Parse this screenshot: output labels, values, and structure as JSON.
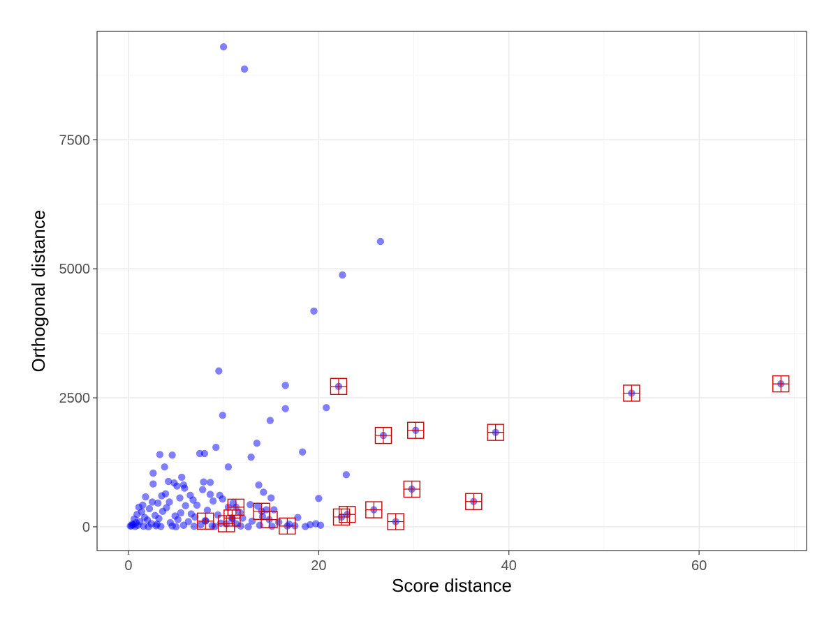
{
  "chart_data": {
    "type": "scatter",
    "title": "",
    "xlabel": "Score distance",
    "ylabel": "Orthogonal distance",
    "xlim": [
      -3.3,
      71.3
    ],
    "ylim": [
      -460,
      9600
    ],
    "x_ticks": [
      0,
      20,
      40,
      60
    ],
    "y_ticks": [
      0,
      2500,
      5000,
      7500
    ],
    "x_tick_labels": [
      "0",
      "20",
      "40",
      "60"
    ],
    "y_tick_labels": [
      "0",
      "2500",
      "5000",
      "7500"
    ],
    "grid": true,
    "legend": "none",
    "point_color": "#0000ff",
    "outlier_marker_color": "#cc0000",
    "series": [
      {
        "values": [
          [
            10.0,
            9300
          ],
          [
            12.2,
            8870
          ],
          [
            26.5,
            5530
          ],
          [
            22.5,
            4880
          ],
          [
            19.5,
            4180
          ],
          [
            9.5,
            3020
          ],
          [
            16.5,
            2740
          ],
          [
            16.5,
            2290
          ],
          [
            20.8,
            2310
          ],
          [
            9.9,
            2160
          ],
          [
            14.9,
            2060
          ],
          [
            13.5,
            1620
          ],
          [
            9.2,
            1540
          ],
          [
            18.3,
            1450
          ],
          [
            7.5,
            1420
          ],
          [
            8.0,
            1420
          ],
          [
            3.3,
            1400
          ],
          [
            4.6,
            1390
          ],
          [
            12.9,
            1350
          ],
          [
            10.5,
            1160
          ],
          [
            3.8,
            1160
          ],
          [
            2.6,
            1040
          ],
          [
            22.9,
            1010
          ],
          [
            5.6,
            960
          ],
          [
            4.2,
            880
          ],
          [
            7.9,
            870
          ],
          [
            8.6,
            860
          ],
          [
            4.8,
            850
          ],
          [
            2.6,
            830
          ],
          [
            5.8,
            810
          ],
          [
            13.7,
            810
          ],
          [
            5.1,
            790
          ],
          [
            5.9,
            750
          ],
          [
            7.8,
            720
          ],
          [
            14.2,
            670
          ],
          [
            3.9,
            640
          ],
          [
            8.6,
            630
          ],
          [
            6.5,
            610
          ],
          [
            9.6,
            610
          ],
          [
            3.5,
            600
          ],
          [
            1.8,
            580
          ],
          [
            15.0,
            560
          ],
          [
            5.4,
            560
          ],
          [
            20.0,
            550
          ],
          [
            9.9,
            540
          ],
          [
            6.8,
            520
          ],
          [
            8.9,
            500
          ],
          [
            4.3,
            480
          ],
          [
            2.5,
            480
          ],
          [
            11.0,
            460
          ],
          [
            3.1,
            460
          ],
          [
            12.8,
            430
          ],
          [
            1.5,
            420
          ],
          [
            7.2,
            420
          ],
          [
            6.0,
            410
          ],
          [
            13.6,
            400
          ],
          [
            1.1,
            380
          ],
          [
            10.5,
            380
          ],
          [
            4.0,
            370
          ],
          [
            2.2,
            350
          ],
          [
            14.5,
            330
          ],
          [
            15.3,
            330
          ],
          [
            8.3,
            320
          ],
          [
            3.6,
            300
          ],
          [
            1.4,
            290
          ],
          [
            11.7,
            280
          ],
          [
            5.5,
            270
          ],
          [
            6.6,
            250
          ],
          [
            0.9,
            240
          ],
          [
            9.4,
            230
          ],
          [
            2.8,
            220
          ],
          [
            4.9,
            210
          ],
          [
            14.1,
            200
          ],
          [
            7.0,
            190
          ],
          [
            1.7,
            180
          ],
          [
            17.8,
            180
          ],
          [
            12.0,
            170
          ],
          [
            3.2,
            160
          ],
          [
            0.6,
            150
          ],
          [
            10.9,
            150
          ],
          [
            5.2,
            140
          ],
          [
            2.0,
            130
          ],
          [
            8.1,
            120
          ],
          [
            13.0,
            110
          ],
          [
            1.2,
            100
          ],
          [
            6.3,
            100
          ],
          [
            15.8,
            90
          ],
          [
            0.8,
            80
          ],
          [
            4.4,
            80
          ],
          [
            9.7,
            70
          ],
          [
            19.7,
            60
          ],
          [
            2.4,
            60
          ],
          [
            11.3,
            60
          ],
          [
            0.4,
            50
          ],
          [
            16.9,
            50
          ],
          [
            3.0,
            50
          ],
          [
            7.6,
            40
          ],
          [
            19.1,
            40
          ],
          [
            0.5,
            40
          ],
          [
            20.2,
            30
          ],
          [
            5.8,
            30
          ],
          [
            1.0,
            30
          ],
          [
            13.8,
            30
          ],
          [
            0.3,
            20
          ],
          [
            2.9,
            20
          ],
          [
            8.8,
            20
          ],
          [
            17.5,
            20
          ],
          [
            0.2,
            15
          ],
          [
            4.6,
            15
          ],
          [
            11.8,
            15
          ],
          [
            1.6,
            10
          ],
          [
            6.9,
            10
          ],
          [
            15.1,
            10
          ],
          [
            0.7,
            5
          ],
          [
            3.4,
            5
          ],
          [
            9.1,
            5
          ],
          [
            18.6,
            5
          ],
          [
            2.1,
            0
          ],
          [
            5.0,
            0
          ],
          [
            12.6,
            0
          ],
          [
            22.1,
            2720
          ],
          [
            26.8,
            1770
          ],
          [
            30.2,
            1870
          ],
          [
            38.6,
            1830
          ],
          [
            52.9,
            2590
          ],
          [
            68.6,
            2770
          ],
          [
            29.8,
            730
          ],
          [
            36.3,
            490
          ],
          [
            25.8,
            330
          ],
          [
            23.0,
            240
          ],
          [
            22.4,
            190
          ],
          [
            28.1,
            100
          ],
          [
            11.3,
            380
          ],
          [
            14.0,
            300
          ],
          [
            8.1,
            110
          ],
          [
            10.3,
            60
          ],
          [
            10.9,
            170
          ],
          [
            14.8,
            140
          ],
          [
            16.7,
            15
          ]
        ]
      }
    ],
    "flagged_outliers": [
      [
        22.1,
        2720
      ],
      [
        26.8,
        1770
      ],
      [
        30.2,
        1870
      ],
      [
        38.6,
        1830
      ],
      [
        52.9,
        2590
      ],
      [
        68.6,
        2770
      ],
      [
        29.8,
        730
      ],
      [
        36.3,
        490
      ],
      [
        25.8,
        330
      ],
      [
        23.0,
        240
      ],
      [
        22.4,
        190
      ],
      [
        28.1,
        100
      ],
      [
        11.3,
        380
      ],
      [
        14.0,
        300
      ],
      [
        8.1,
        110
      ],
      [
        10.3,
        60
      ],
      [
        10.9,
        170
      ],
      [
        14.8,
        140
      ],
      [
        16.7,
        15
      ]
    ]
  }
}
